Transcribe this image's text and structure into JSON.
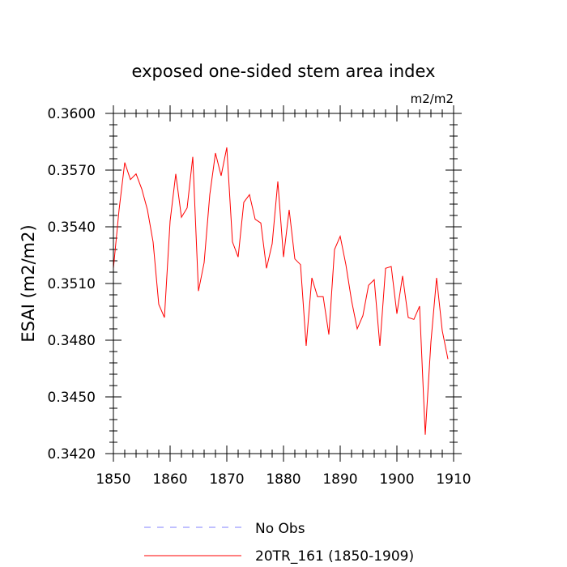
{
  "chart_data": {
    "type": "line",
    "title": "exposed one-sided stem area index",
    "units_label": "m2/m2",
    "xlabel": "",
    "ylabel": "ESAI  (m2/m2)",
    "xlim": [
      1850,
      1910
    ],
    "ylim": [
      0.342,
      0.36
    ],
    "x_ticks": [
      1850,
      1860,
      1870,
      1880,
      1890,
      1900,
      1910
    ],
    "y_ticks": [
      "0.3420",
      "0.3450",
      "0.3480",
      "0.3510",
      "0.3540",
      "0.3570",
      "0.3600"
    ],
    "series": [
      {
        "name": "20TR_161 (1850-1909)",
        "color": "#ff0000",
        "x": [
          1850,
          1851,
          1852,
          1853,
          1854,
          1855,
          1856,
          1857,
          1858,
          1859,
          1860,
          1861,
          1862,
          1863,
          1864,
          1865,
          1866,
          1867,
          1868,
          1869,
          1870,
          1871,
          1872,
          1873,
          1874,
          1875,
          1876,
          1877,
          1878,
          1879,
          1880,
          1881,
          1882,
          1883,
          1884,
          1885,
          1886,
          1887,
          1888,
          1889,
          1890,
          1891,
          1892,
          1893,
          1894,
          1895,
          1896,
          1897,
          1898,
          1899,
          1900,
          1901,
          1902,
          1903,
          1904,
          1905,
          1906,
          1907,
          1908,
          1909
        ],
        "values": [
          0.3518,
          0.3549,
          0.3574,
          0.3565,
          0.3568,
          0.356,
          0.3549,
          0.3532,
          0.3499,
          0.3492,
          0.3543,
          0.3568,
          0.3545,
          0.355,
          0.3577,
          0.3506,
          0.3521,
          0.3557,
          0.3579,
          0.3567,
          0.3582,
          0.3532,
          0.3524,
          0.3553,
          0.3557,
          0.3544,
          0.3542,
          0.3518,
          0.3531,
          0.3564,
          0.3524,
          0.3549,
          0.3523,
          0.352,
          0.3477,
          0.3513,
          0.3503,
          0.3503,
          0.3483,
          0.3528,
          0.3535,
          0.352,
          0.3501,
          0.3486,
          0.3493,
          0.3509,
          0.3512,
          0.3477,
          0.3518,
          0.3519,
          0.3494,
          0.3514,
          0.3492,
          0.3491,
          0.3498,
          0.343,
          0.3479,
          0.3513,
          0.3485,
          0.347
        ]
      }
    ],
    "legend": {
      "placement": "bottom",
      "entries": [
        {
          "label": "No Obs",
          "color": "#8080ff",
          "style": "dashed"
        },
        {
          "label": "20TR_161 (1850-1909)",
          "color": "#ff0000",
          "style": "solid"
        }
      ]
    }
  }
}
